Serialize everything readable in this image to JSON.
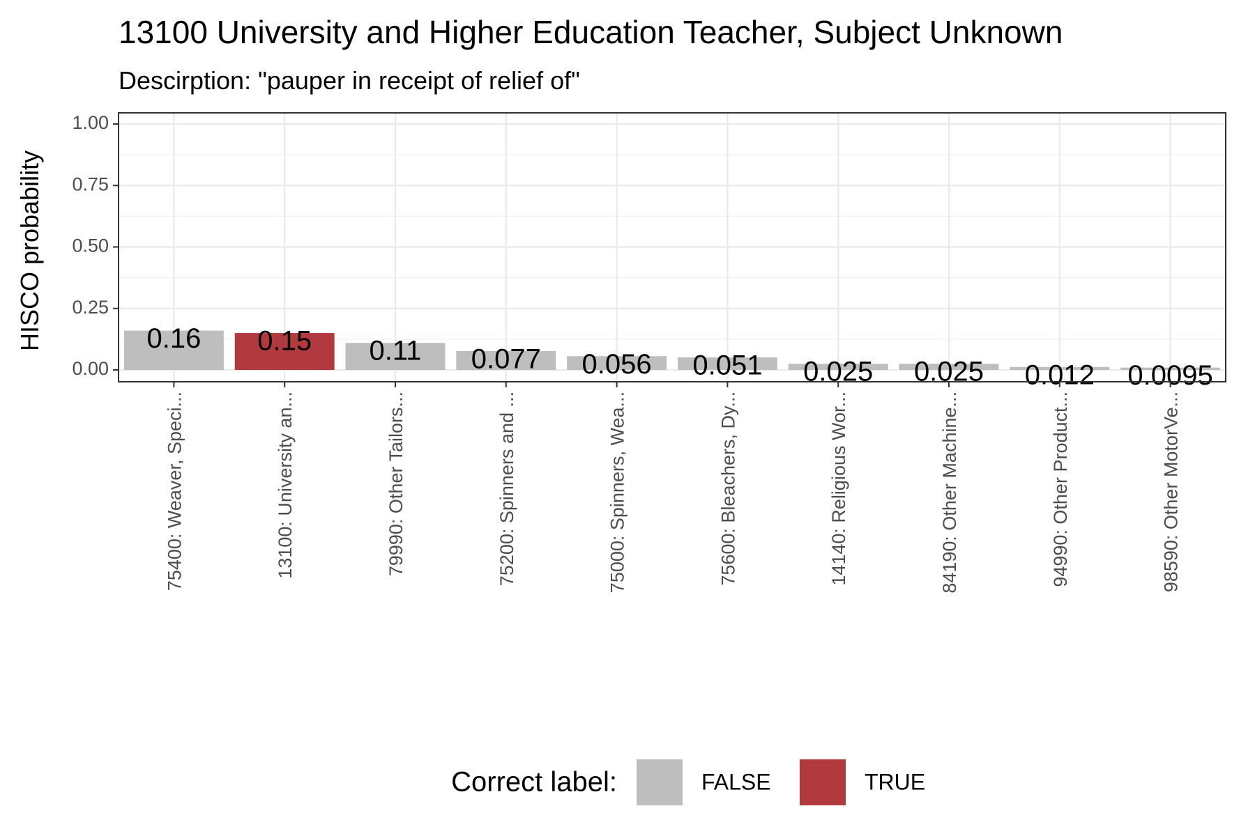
{
  "chart_data": {
    "type": "bar",
    "title": "13100 University and Higher Education Teacher, Subject Unknown",
    "subtitle": "Descirption: \"pauper in receipt of relief of\"",
    "xlabel": "",
    "ylabel": "HISCO probability",
    "ylim": [
      0,
      1
    ],
    "yticks": [
      "0.00",
      "0.25",
      "0.50",
      "0.75",
      "1.00"
    ],
    "ytick_values": [
      0,
      0.25,
      0.5,
      0.75,
      1
    ],
    "grid": true,
    "categories": [
      "75400: Weaver, Speci...",
      "13100: University an...",
      "79990: Other Tailors...",
      "75200: Spinners and ...",
      "75000: Spinners, Wea...",
      "75600: Bleachers, Dy...",
      "14140: Religious Wor...",
      "84190: Other Machine...",
      "94990: Other Product...",
      "98590: Other MotorVe..."
    ],
    "values": [
      0.16,
      0.15,
      0.11,
      0.077,
      0.056,
      0.051,
      0.025,
      0.025,
      0.012,
      0.0095
    ],
    "value_labels": [
      "0.16",
      "0.15",
      "0.11",
      "0.077",
      "0.056",
      "0.051",
      "0.025",
      "0.025",
      "0.012",
      "0.0095"
    ],
    "correct": [
      false,
      true,
      false,
      false,
      false,
      false,
      false,
      false,
      false,
      false
    ],
    "legend": {
      "title": "Correct label:",
      "position": "bottom",
      "entries": [
        {
          "label": "FALSE",
          "color": "#bebebe"
        },
        {
          "label": "TRUE",
          "color": "#b23a3f"
        }
      ]
    },
    "colors": {
      "false": "#bebebe",
      "true": "#b23a3f"
    }
  }
}
